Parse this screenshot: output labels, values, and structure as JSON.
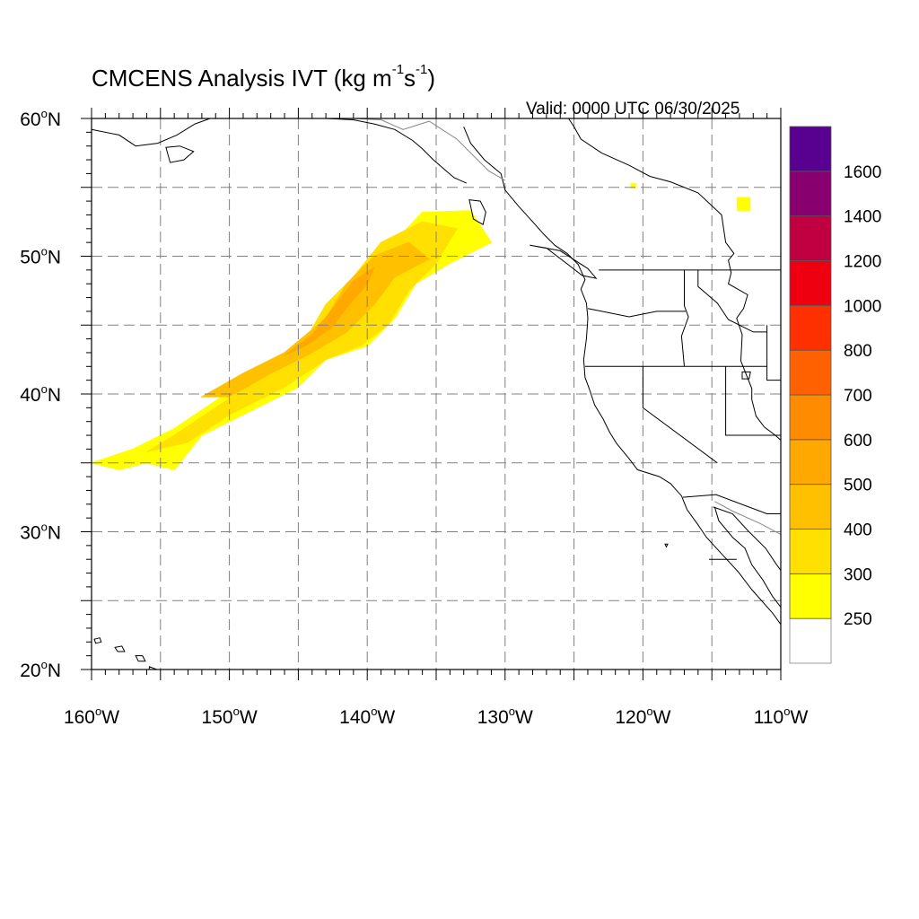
{
  "title": {
    "main": "CMCENS Analysis IVT (kg m",
    "exp1": "-1",
    "mid": "s",
    "exp2": "-1",
    "end": ")"
  },
  "valid_label": "Valid: 0000 UTC 06/30/2025",
  "colors": {
    "levels": [
      "#ffffff",
      "#ffff00",
      "#ffe000",
      "#ffc000",
      "#ffa800",
      "#ff8c00",
      "#ff6000",
      "#ff3000",
      "#ee0010",
      "#c00040",
      "#880070",
      "#580090"
    ],
    "coast": "#000000",
    "grid": "#808080"
  },
  "chart_data": {
    "type": "heatmap",
    "lon_range": [
      -160,
      -110
    ],
    "lat_range": [
      20,
      60
    ],
    "x_ticks": [
      {
        "lon": -160,
        "label": "160",
        "suffix": "W"
      },
      {
        "lon": -150,
        "label": "150",
        "suffix": "W"
      },
      {
        "lon": -140,
        "label": "140",
        "suffix": "W"
      },
      {
        "lon": -130,
        "label": "130",
        "suffix": "W"
      },
      {
        "lon": -120,
        "label": "120",
        "suffix": "W"
      },
      {
        "lon": -110,
        "label": "110",
        "suffix": "W"
      }
    ],
    "y_ticks": [
      {
        "lat": 60,
        "label": "60",
        "suffix": "N"
      },
      {
        "lat": 50,
        "label": "50",
        "suffix": "N"
      },
      {
        "lat": 40,
        "label": "40",
        "suffix": "N"
      },
      {
        "lat": 30,
        "label": "30",
        "suffix": "N"
      },
      {
        "lat": 20,
        "label": "20",
        "suffix": "N"
      }
    ],
    "grid": true,
    "colorbar": {
      "labels": [
        "250",
        "300",
        "400",
        "500",
        "600",
        "700",
        "800",
        "1000",
        "1200",
        "1400",
        "1600"
      ],
      "placement": "right"
    },
    "ivt_regions": [
      {
        "level": 1,
        "name": "ivt-250-300",
        "outline": [
          [
            -160,
            35
          ],
          [
            -157,
            36
          ],
          [
            -154,
            37.5
          ],
          [
            -151,
            39.5
          ],
          [
            -148,
            41.5
          ],
          [
            -145,
            43.5
          ],
          [
            -142,
            46.5
          ],
          [
            -139,
            50
          ],
          [
            -136,
            53.2
          ],
          [
            -132.5,
            53.3
          ],
          [
            -131,
            51
          ],
          [
            -134,
            49.5
          ],
          [
            -136.5,
            48
          ],
          [
            -138,
            45.5
          ],
          [
            -140,
            43.5
          ],
          [
            -143,
            42.5
          ],
          [
            -145,
            40.5
          ],
          [
            -149,
            38.5
          ],
          [
            -152,
            37
          ],
          [
            -154,
            34.5
          ],
          [
            -156,
            35
          ],
          [
            -158,
            34.5
          ]
        ]
      },
      {
        "level": 2,
        "name": "ivt-300-400",
        "outline": [
          [
            -156,
            35.8
          ],
          [
            -154,
            37
          ],
          [
            -151,
            39
          ],
          [
            -148,
            41
          ],
          [
            -145,
            43
          ],
          [
            -143,
            46.5
          ],
          [
            -141,
            48.5
          ],
          [
            -139,
            51
          ],
          [
            -136,
            52.5
          ],
          [
            -133.5,
            52
          ],
          [
            -135,
            49.5
          ],
          [
            -137,
            47.5
          ],
          [
            -138.5,
            45
          ],
          [
            -140.5,
            43.5
          ],
          [
            -143,
            42.5
          ],
          [
            -146,
            40.5
          ],
          [
            -150,
            38.5
          ],
          [
            -153,
            36.5
          ]
        ]
      },
      {
        "level": 3,
        "name": "ivt-400-500",
        "outline": [
          [
            -152,
            39.8
          ],
          [
            -149,
            41.5
          ],
          [
            -146,
            43
          ],
          [
            -143,
            45.5
          ],
          [
            -141.5,
            48
          ],
          [
            -139.5,
            50
          ],
          [
            -137,
            51
          ],
          [
            -135.5,
            49.8
          ],
          [
            -138,
            48.5
          ],
          [
            -139.5,
            46.5
          ],
          [
            -141.5,
            44.5
          ],
          [
            -144,
            43
          ],
          [
            -147,
            41.5
          ],
          [
            -150,
            39.8
          ]
        ]
      },
      {
        "level": 4,
        "name": "ivt-500-600",
        "outline": [
          [
            -146,
            42.8
          ],
          [
            -144,
            44.3
          ],
          [
            -142.5,
            46.2
          ],
          [
            -141,
            48.2
          ],
          [
            -139.5,
            49.2
          ],
          [
            -140,
            48
          ],
          [
            -141.3,
            46.5
          ],
          [
            -142.6,
            44.8
          ],
          [
            -144.5,
            43.5
          ]
        ]
      }
    ],
    "ivt_spots": [
      {
        "level": 1,
        "name": "ivt-spot-northwest",
        "lon_range": [
          -113.2,
          -112.2
        ],
        "lat_range": [
          53.3,
          54.3
        ]
      },
      {
        "level": 1,
        "name": "ivt-spot-small",
        "lon_range": [
          -120.9,
          -120.5
        ],
        "lat_range": [
          54.9,
          55.3
        ]
      }
    ]
  }
}
